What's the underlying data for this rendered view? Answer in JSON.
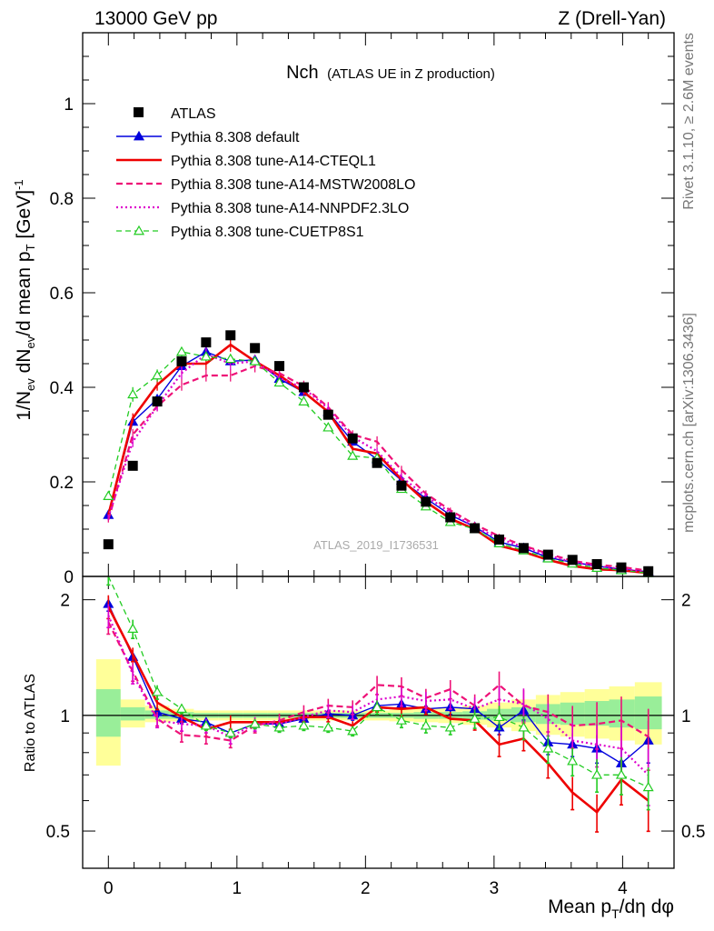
{
  "header": {
    "left": "13000 GeV pp",
    "right": "Z (Drell-Yan)"
  },
  "side": {
    "top": "Rivet 3.1.10, ≥ 2.6M events",
    "bottom": "mcplots.cern.ch [arXiv:1306.3436]"
  },
  "plot": {
    "title_main": "Nch",
    "title_sub": "(ATLAS UE in Z production)",
    "watermark": "ATLAS_2019_I1736531",
    "ylabel": "1/N_ev dN_ev/d mean p_T [GeV]^-1",
    "ylabel_parts": {
      "a": "1/N",
      "b": "ev",
      "c": " dN",
      "d": "ev",
      "e": "/d mean p",
      "f": "T",
      "g": " [GeV]",
      "h": "-1"
    },
    "xlabel_parts": {
      "a": "Mean p",
      "b": "T",
      "c": "/dη dφ"
    },
    "ratio_ylabel": "Ratio to ATLAS",
    "upper_yticks": [
      "0",
      "0.2",
      "0.4",
      "0.6",
      "0.8",
      "1"
    ],
    "lower_yticks": [
      "0.5",
      "1",
      "2"
    ],
    "xticks": [
      "0",
      "1",
      "2",
      "3",
      "4"
    ]
  },
  "legend": [
    {
      "name": "ATLAS",
      "color": "#000000",
      "style": "data"
    },
    {
      "name": "Pythia 8.308 default",
      "color": "#0000dd",
      "style": "solid-triangle"
    },
    {
      "name": "Pythia 8.308 tune-A14-CTEQL1",
      "color": "#ee0000",
      "style": "solid-thick"
    },
    {
      "name": "Pythia 8.308 tune-A14-MSTW2008LO",
      "color": "#ee1177",
      "style": "dashed"
    },
    {
      "name": "Pythia 8.308 tune-A14-NNPDF2.3LO",
      "color": "#dd00cc",
      "style": "dotted"
    },
    {
      "name": "Pythia 8.308 tune-CUETP8S1",
      "color": "#22cc22",
      "style": "dashed-open-triangle"
    }
  ],
  "chart_data": {
    "type": "line",
    "x": [
      0.0,
      0.19,
      0.38,
      0.57,
      0.76,
      0.95,
      1.14,
      1.33,
      1.52,
      1.71,
      1.9,
      2.09,
      2.28,
      2.47,
      2.66,
      2.85,
      3.04,
      3.23,
      3.42,
      3.61,
      3.8,
      3.99,
      4.2
    ],
    "xlim": [
      -0.2,
      4.4
    ],
    "ylim": [
      0,
      1.15
    ],
    "ratio_ylim": [
      0.4,
      2.3
    ],
    "ratio_scale": "log",
    "data": {
      "name": "ATLAS",
      "values": [
        0.068,
        0.234,
        0.37,
        0.455,
        0.495,
        0.51,
        0.483,
        0.445,
        0.4,
        0.342,
        0.292,
        0.24,
        0.192,
        0.158,
        0.125,
        0.102,
        0.078,
        0.06,
        0.046,
        0.035,
        0.026,
        0.019,
        0.011
      ]
    },
    "uncertainty_bands": {
      "inner": [
        [
          0.88,
          1.17
        ],
        [
          0.97,
          1.05
        ],
        [
          0.98,
          1.03
        ],
        [
          0.98,
          1.02
        ],
        [
          0.985,
          1.015
        ],
        [
          0.985,
          1.015
        ],
        [
          0.985,
          1.015
        ],
        [
          0.985,
          1.015
        ],
        [
          0.985,
          1.015
        ],
        [
          0.985,
          1.015
        ],
        [
          0.985,
          1.015
        ],
        [
          0.985,
          1.015
        ],
        [
          0.985,
          1.015
        ],
        [
          0.98,
          1.02
        ],
        [
          0.98,
          1.02
        ],
        [
          0.975,
          1.025
        ],
        [
          0.97,
          1.04
        ],
        [
          0.96,
          1.05
        ],
        [
          0.95,
          1.07
        ],
        [
          0.945,
          1.08
        ],
        [
          0.94,
          1.09
        ],
        [
          0.93,
          1.1
        ],
        [
          0.92,
          1.12
        ]
      ],
      "outer": [
        [
          0.74,
          1.4
        ],
        [
          0.93,
          1.1
        ],
        [
          0.96,
          1.06
        ],
        [
          0.965,
          1.04
        ],
        [
          0.97,
          1.03
        ],
        [
          0.97,
          1.03
        ],
        [
          0.97,
          1.03
        ],
        [
          0.97,
          1.03
        ],
        [
          0.97,
          1.03
        ],
        [
          0.97,
          1.03
        ],
        [
          0.97,
          1.03
        ],
        [
          0.97,
          1.03
        ],
        [
          0.965,
          1.035
        ],
        [
          0.96,
          1.04
        ],
        [
          0.955,
          1.05
        ],
        [
          0.945,
          1.06
        ],
        [
          0.93,
          1.08
        ],
        [
          0.91,
          1.1
        ],
        [
          0.89,
          1.13
        ],
        [
          0.88,
          1.15
        ],
        [
          0.87,
          1.17
        ],
        [
          0.86,
          1.19
        ],
        [
          0.84,
          1.22
        ]
      ]
    },
    "series": [
      {
        "name": "Pythia 8.308 default",
        "color": "#0000dd",
        "values": [
          0.13,
          0.327,
          0.375,
          0.445,
          0.475,
          0.455,
          0.458,
          0.418,
          0.39,
          0.348,
          0.285,
          0.248,
          0.203,
          0.165,
          0.13,
          0.105,
          0.073,
          0.06,
          0.04,
          0.03,
          0.022,
          0.015,
          0.01
        ],
        "ratio": [
          1.95,
          1.42,
          1.02,
          0.98,
          0.96,
          0.9,
          0.95,
          0.95,
          0.98,
          1.01,
          1.0,
          1.06,
          1.07,
          1.04,
          1.05,
          1.04,
          0.93,
          1.03,
          0.85,
          0.84,
          0.82,
          0.75,
          0.86
        ],
        "errors": [
          0.03,
          0.02,
          0.02,
          0.02,
          0.02,
          0.02,
          0.02,
          0.02,
          0.02,
          0.02,
          0.02,
          0.02,
          0.02,
          0.02,
          0.03,
          0.03,
          0.03,
          0.04,
          0.05,
          0.05,
          0.06,
          0.07,
          0.09
        ]
      },
      {
        "name": "Pythia 8.308 tune-A14-CTEQL1",
        "color": "#ee0000",
        "values": [
          0.13,
          0.335,
          0.405,
          0.45,
          0.45,
          0.49,
          0.455,
          0.425,
          0.39,
          0.348,
          0.27,
          0.26,
          0.205,
          0.158,
          0.122,
          0.1,
          0.065,
          0.052,
          0.035,
          0.022,
          0.015,
          0.013,
          0.007
        ],
        "ratio": [
          1.92,
          1.44,
          1.08,
          0.99,
          0.92,
          0.96,
          0.96,
          0.96,
          0.99,
          0.99,
          0.94,
          1.05,
          1.04,
          1.05,
          0.98,
          0.97,
          0.84,
          0.87,
          0.75,
          0.63,
          0.56,
          0.68,
          0.6
        ],
        "errors": [
          0.05,
          0.03,
          0.03,
          0.02,
          0.03,
          0.03,
          0.02,
          0.02,
          0.02,
          0.02,
          0.02,
          0.02,
          0.03,
          0.03,
          0.03,
          0.04,
          0.05,
          0.05,
          0.06,
          0.07,
          0.08,
          0.1,
          0.12
        ]
      },
      {
        "name": "Pythia 8.308 tune-A14-MSTW2008LO",
        "color": "#ee1177",
        "values": [
          0.12,
          0.3,
          0.36,
          0.405,
          0.425,
          0.425,
          0.445,
          0.43,
          0.402,
          0.358,
          0.3,
          0.285,
          0.225,
          0.175,
          0.14,
          0.11,
          0.085,
          0.065,
          0.048,
          0.033,
          0.025,
          0.02,
          0.012
        ],
        "ratio": [
          1.75,
          1.3,
          0.98,
          0.89,
          0.88,
          0.86,
          0.94,
          0.97,
          1.02,
          1.06,
          1.05,
          1.2,
          1.19,
          1.11,
          1.17,
          1.06,
          1.2,
          1.06,
          1.02,
          0.94,
          0.95,
          0.97,
          0.88
        ],
        "errors": [
          0.05,
          0.04,
          0.03,
          0.03,
          0.03,
          0.03,
          0.03,
          0.03,
          0.03,
          0.03,
          0.03,
          0.04,
          0.04,
          0.04,
          0.04,
          0.05,
          0.06,
          0.07,
          0.08,
          0.09,
          0.1,
          0.11,
          0.13
        ]
      },
      {
        "name": "Pythia 8.308 tune-A14-NNPDF2.3LO",
        "color": "#dd00cc",
        "values": [
          0.125,
          0.285,
          0.36,
          0.43,
          0.47,
          0.45,
          0.455,
          0.42,
          0.398,
          0.355,
          0.295,
          0.265,
          0.21,
          0.17,
          0.135,
          0.105,
          0.08,
          0.062,
          0.045,
          0.03,
          0.022,
          0.016,
          0.009
        ],
        "ratio": [
          1.82,
          1.28,
          0.97,
          0.95,
          0.94,
          0.88,
          0.95,
          0.95,
          0.99,
          1.03,
          1.02,
          1.1,
          1.12,
          1.09,
          1.1,
          1.04,
          1.1,
          1.07,
          0.98,
          0.86,
          0.84,
          0.82,
          0.7
        ],
        "errors": [
          0.05,
          0.04,
          0.03,
          0.03,
          0.03,
          0.03,
          0.03,
          0.03,
          0.03,
          0.03,
          0.03,
          0.03,
          0.04,
          0.04,
          0.04,
          0.05,
          0.06,
          0.07,
          0.07,
          0.08,
          0.09,
          0.1,
          0.12
        ]
      },
      {
        "name": "Pythia 8.308 tune-CUETP8S1",
        "color": "#22cc22",
        "values": [
          0.17,
          0.385,
          0.425,
          0.475,
          0.465,
          0.46,
          0.455,
          0.41,
          0.37,
          0.315,
          0.255,
          0.25,
          0.185,
          0.148,
          0.115,
          0.1,
          0.07,
          0.055,
          0.038,
          0.027,
          0.018,
          0.013,
          0.007
        ],
        "ratio": [
          2.35,
          1.68,
          1.15,
          1.04,
          0.94,
          0.9,
          0.95,
          0.93,
          0.94,
          0.93,
          0.91,
          1.05,
          0.97,
          0.94,
          0.93,
          0.98,
          0.99,
          0.93,
          0.82,
          0.76,
          0.7,
          0.7,
          0.65
        ],
        "errors": [
          0.05,
          0.04,
          0.03,
          0.02,
          0.02,
          0.02,
          0.02,
          0.02,
          0.02,
          0.02,
          0.02,
          0.03,
          0.03,
          0.03,
          0.03,
          0.04,
          0.05,
          0.05,
          0.06,
          0.06,
          0.07,
          0.08,
          0.09
        ]
      }
    ]
  }
}
